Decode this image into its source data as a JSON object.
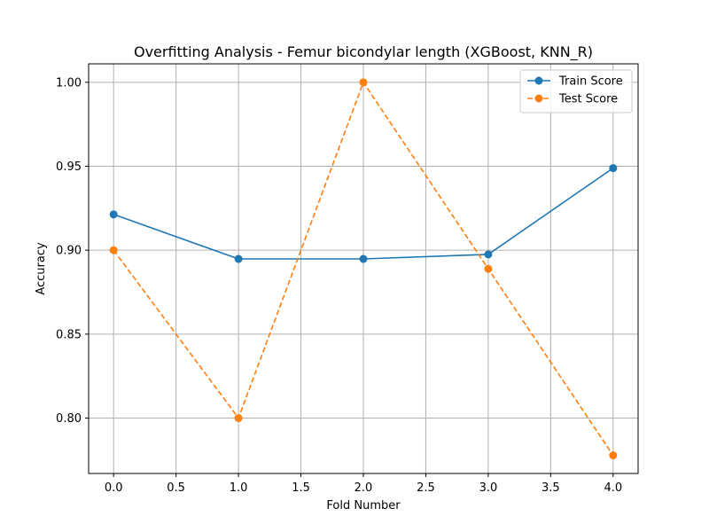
{
  "chart_data": {
    "type": "line",
    "title": "Overfitting Analysis - Femur bicondylar length (XGBoost, KNN_R)",
    "xlabel": "Fold Number",
    "ylabel": "Accuracy",
    "x": [
      0,
      1,
      2,
      3,
      4
    ],
    "xlim": [
      -0.2,
      4.2
    ],
    "ylim": [
      0.767,
      1.011
    ],
    "xticks": [
      0.0,
      0.5,
      1.0,
      1.5,
      2.0,
      2.5,
      3.0,
      3.5,
      4.0
    ],
    "yticks": [
      0.8,
      0.85,
      0.9,
      0.95,
      1.0
    ],
    "xtick_labels": [
      "0.0",
      "0.5",
      "1.0",
      "1.5",
      "2.0",
      "2.5",
      "3.0",
      "3.5",
      "4.0"
    ],
    "ytick_labels": [
      "0.80",
      "0.85",
      "0.90",
      "0.95",
      "1.00"
    ],
    "grid": true,
    "legend_position": "top-right",
    "series": [
      {
        "name": "Train Score",
        "color": "#1f77b4",
        "linestyle": "solid",
        "marker": "circle",
        "values": [
          0.9213,
          0.8948,
          0.8948,
          0.8975,
          0.9489
        ]
      },
      {
        "name": "Test Score",
        "color": "#ff7f0e",
        "linestyle": "dashed",
        "marker": "circle",
        "values": [
          0.9,
          0.8,
          1.0,
          0.8889,
          0.7778
        ]
      }
    ]
  }
}
